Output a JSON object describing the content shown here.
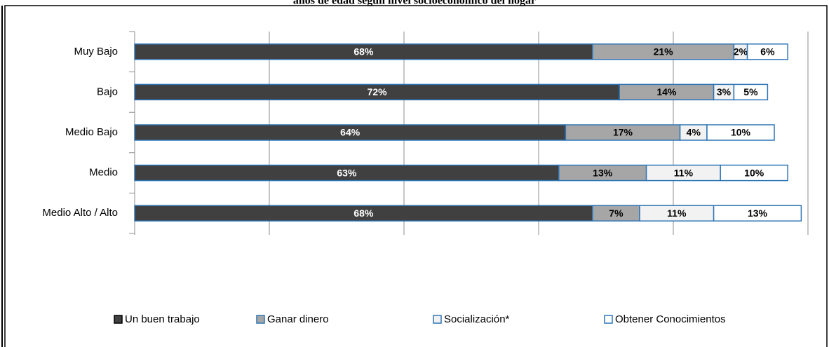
{
  "chart_data": {
    "type": "stacked-bar-horizontal",
    "title": "años de edad según nivel socioeconómico del hogar",
    "categories": [
      "Muy Bajo",
      "Bajo",
      "Medio Bajo",
      "Medio",
      "Medio Alto / Alto"
    ],
    "series": [
      {
        "name": "Un buen trabajo",
        "color": "#404040",
        "values": [
          68,
          72,
          64,
          63,
          68
        ],
        "value_labels": [
          "68%",
          "72%",
          "64%",
          "63%",
          "68%"
        ]
      },
      {
        "name": "Ganar dinero",
        "color": "#a6a6a6",
        "values": [
          21,
          14,
          17,
          13,
          7
        ],
        "value_labels": [
          "21%",
          "14%",
          "17%",
          "13%",
          "7%"
        ]
      },
      {
        "name": "Socialización*",
        "color": "#f2f2f2",
        "values": [
          2,
          3,
          4,
          11,
          11
        ],
        "value_labels": [
          "2%",
          "3%",
          "4%",
          "11%",
          "11%"
        ]
      },
      {
        "name": "Obtener Conocimientos",
        "color": "#ffffff",
        "values": [
          6,
          5,
          10,
          10,
          13
        ],
        "value_labels": [
          "6%",
          "5%",
          "10%",
          "10%",
          "13%"
        ]
      }
    ],
    "xlim": [
      0,
      100
    ],
    "xticks": [
      0,
      20,
      40,
      60,
      80,
      100
    ],
    "grid": true,
    "legend": "bottom"
  }
}
